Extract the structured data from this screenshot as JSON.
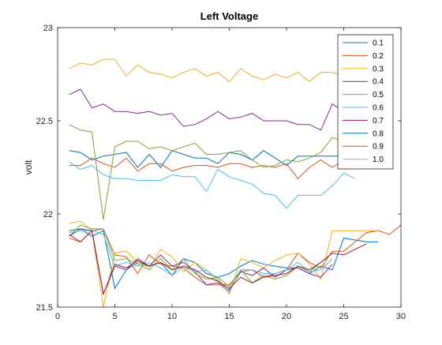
{
  "chart_data": {
    "type": "line",
    "title": "Left Voltage",
    "xlabel": "",
    "ylabel": "volt",
    "xlim": [
      0,
      30
    ],
    "ylim": [
      21.5,
      23
    ],
    "xticks": [
      0,
      5,
      10,
      15,
      20,
      25,
      30
    ],
    "yticks": [
      21.5,
      22,
      22.5,
      23
    ],
    "ytick_labels": [
      "21.5",
      "22",
      "22.5",
      "23"
    ],
    "grid": false,
    "legend_location": "top-right",
    "legend_labels": [
      "0.1",
      "0.2",
      "0.3",
      "0.4",
      "0.5",
      "0.6",
      "0.7",
      "0.8",
      "0.9",
      "1.0"
    ],
    "colors": [
      "#0072BD",
      "#D95319",
      "#EDB120",
      "#7E2F8E",
      "#77AC30",
      "#4DBEEE",
      "#A2142F"
    ],
    "series": [
      {
        "name": "0.1",
        "color": "#0072BD",
        "x": [
          1,
          2,
          3,
          4,
          5,
          6,
          7,
          8,
          9,
          10,
          11,
          12,
          13,
          14,
          15,
          16,
          17,
          18,
          19,
          20,
          21,
          22,
          23,
          24,
          25,
          26,
          27,
          28
        ],
        "y": [
          21.91,
          21.92,
          21.88,
          21.91,
          21.6,
          21.7,
          21.74,
          21.72,
          21.74,
          21.67,
          21.76,
          21.74,
          21.68,
          21.66,
          21.68,
          21.72,
          21.75,
          21.73,
          21.72,
          21.71,
          21.71,
          21.68,
          21.72,
          21.7,
          21.87,
          21.86,
          21.85,
          21.85
        ]
      },
      {
        "name": "0.2",
        "color": "#D95319",
        "x": [
          1,
          2,
          3,
          4,
          5,
          6,
          7,
          8,
          9,
          10,
          11,
          12,
          13,
          14,
          15,
          16,
          17,
          18,
          19,
          20,
          21,
          22,
          23,
          24,
          25,
          26,
          27,
          28,
          29,
          30
        ],
        "y": [
          21.87,
          21.85,
          21.91,
          21.92,
          21.78,
          21.77,
          21.68,
          21.78,
          21.73,
          21.72,
          21.71,
          21.66,
          21.62,
          21.62,
          21.62,
          21.69,
          21.7,
          21.66,
          21.68,
          21.7,
          21.79,
          21.74,
          21.71,
          21.8,
          21.8,
          21.85,
          21.9,
          21.91,
          21.89,
          21.94
        ]
      },
      {
        "name": "0.3",
        "color": "#EDB120",
        "x": [
          1,
          2,
          3,
          4,
          5,
          6,
          7,
          8,
          9,
          10,
          11,
          12,
          13,
          14,
          15,
          16,
          17,
          18,
          19,
          20,
          21,
          22,
          23,
          24,
          25,
          26,
          27,
          28
        ],
        "y": [
          21.95,
          21.96,
          21.91,
          21.5,
          21.79,
          21.8,
          21.74,
          21.71,
          21.81,
          21.77,
          21.69,
          21.74,
          21.7,
          21.64,
          21.57,
          21.76,
          21.74,
          21.71,
          21.75,
          21.78,
          21.79,
          21.73,
          21.65,
          21.91,
          21.91,
          21.91,
          21.91,
          21.91
        ]
      },
      {
        "name": "0.4",
        "color": "#7E2F8E",
        "x": [
          1,
          2,
          3,
          4,
          5,
          6,
          7,
          8,
          9,
          10,
          11,
          12,
          13,
          14,
          15,
          16,
          17,
          18,
          19,
          20,
          21,
          22,
          23,
          24
        ],
        "y": [
          21.88,
          21.92,
          21.91,
          21.57,
          21.72,
          21.7,
          21.76,
          21.72,
          21.78,
          21.72,
          21.74,
          21.69,
          21.62,
          21.63,
          21.59,
          21.69,
          21.67,
          21.71,
          21.66,
          21.7,
          21.71,
          21.68,
          21.66,
          21.73
        ]
      },
      {
        "name": "0.5",
        "color": "#77AC30",
        "x": [
          1,
          2,
          3,
          4,
          5,
          6,
          7,
          8,
          9,
          10,
          11,
          12,
          13,
          14,
          15,
          16,
          17,
          18,
          19,
          20,
          21,
          22,
          23,
          24
        ],
        "y": [
          21.88,
          21.94,
          21.92,
          21.92,
          21.75,
          21.76,
          21.73,
          21.7,
          21.76,
          21.7,
          21.76,
          21.68,
          21.65,
          21.66,
          21.61,
          21.7,
          21.63,
          21.67,
          21.65,
          21.67,
          21.72,
          21.69,
          21.74,
          21.79
        ]
      },
      {
        "name": "0.6",
        "color": "#4DBEEE",
        "x": [
          1,
          2,
          3,
          4,
          5,
          6,
          7,
          8,
          9,
          10,
          11,
          12,
          13,
          14,
          15,
          16,
          17,
          18,
          19,
          20,
          21,
          22,
          23,
          24
        ],
        "y": [
          21.9,
          21.91,
          21.91,
          21.89,
          21.72,
          21.74,
          21.72,
          21.74,
          21.71,
          21.67,
          21.72,
          21.69,
          21.7,
          21.65,
          21.58,
          21.7,
          21.7,
          21.68,
          21.68,
          21.7,
          21.74,
          21.69,
          21.7,
          21.76
        ]
      },
      {
        "name": "0.7",
        "color": "#A2142F",
        "x": [
          1,
          2,
          3,
          4,
          5,
          6,
          7,
          8,
          9,
          10,
          11,
          12,
          13,
          14,
          15,
          16,
          17,
          18,
          19,
          20,
          21,
          22,
          23,
          24,
          25,
          26,
          27
        ],
        "y": [
          21.89,
          21.85,
          21.91,
          21.57,
          21.73,
          21.71,
          21.75,
          21.72,
          21.74,
          21.7,
          21.72,
          21.7,
          21.66,
          21.64,
          21.6,
          21.66,
          21.63,
          21.66,
          21.67,
          21.68,
          21.72,
          21.7,
          21.74,
          21.79,
          21.78,
          21.81,
          21.84
        ]
      },
      {
        "name": "0.8",
        "color": "#0072BD",
        "x": [
          1,
          2,
          3,
          4,
          5,
          6,
          7,
          8,
          9,
          10,
          11,
          12,
          13,
          14,
          15,
          16,
          17,
          18,
          19,
          20,
          21,
          22,
          23,
          24,
          25,
          26,
          27
        ],
        "y": [
          22.34,
          22.33,
          22.29,
          22.31,
          22.32,
          22.33,
          22.25,
          22.32,
          22.25,
          22.34,
          22.32,
          22.3,
          22.3,
          22.27,
          22.33,
          22.32,
          22.29,
          22.34,
          22.3,
          22.26,
          22.31,
          22.31,
          22.31,
          22.31,
          22.31,
          22.28,
          22.27
        ]
      },
      {
        "name": "0.9",
        "color": "#D95319",
        "x": [
          1,
          2,
          3,
          4,
          5,
          6,
          7,
          8,
          9,
          10,
          11,
          12,
          13,
          14,
          15,
          16,
          17,
          18,
          19,
          20,
          21,
          22,
          23,
          24,
          25,
          26,
          27
        ],
        "y": [
          22.26,
          22.26,
          22.3,
          22.27,
          22.25,
          22.3,
          22.23,
          22.27,
          22.27,
          22.23,
          22.25,
          22.26,
          22.26,
          22.25,
          22.27,
          22.27,
          22.25,
          22.26,
          22.25,
          22.27,
          22.19,
          22.25,
          22.29,
          22.25,
          22.29,
          22.27,
          22.27
        ]
      },
      {
        "name": "1.0",
        "color": "#EDB120",
        "x": [
          1,
          2,
          3,
          4,
          5,
          6,
          7,
          8,
          9,
          10,
          11,
          12,
          13,
          14,
          15,
          16,
          17,
          18,
          19,
          20,
          21,
          22,
          23,
          24,
          25,
          26,
          27
        ],
        "y": [
          22.78,
          22.81,
          22.8,
          22.83,
          22.83,
          22.74,
          22.8,
          22.76,
          22.75,
          22.73,
          22.76,
          22.78,
          22.74,
          22.76,
          22.71,
          22.78,
          22.74,
          22.72,
          22.75,
          22.73,
          22.76,
          22.71,
          22.76,
          22.76,
          22.74,
          22.74,
          22.74
        ]
      },
      {
        "name": "",
        "color": "#7E2F8E",
        "x": [
          1,
          2,
          3,
          4,
          5,
          6,
          7,
          8,
          9,
          10,
          11,
          12,
          13,
          14,
          15,
          16,
          17,
          18,
          19,
          20,
          21,
          22,
          23,
          24,
          25,
          26,
          27
        ],
        "y": [
          22.64,
          22.67,
          22.57,
          22.59,
          22.55,
          22.55,
          22.54,
          22.55,
          22.53,
          22.54,
          22.47,
          22.48,
          22.51,
          22.55,
          22.51,
          22.52,
          22.54,
          22.5,
          22.5,
          22.5,
          22.48,
          22.48,
          22.45,
          22.59,
          22.55,
          22.55,
          22.55
        ]
      },
      {
        "name": "",
        "color": "#77AC30",
        "x": [
          1,
          2,
          3,
          4,
          5,
          6,
          7,
          8,
          9,
          10,
          11,
          12,
          13,
          14,
          15,
          16,
          17,
          18,
          19,
          20,
          21,
          22,
          23,
          24,
          25,
          26,
          27
        ],
        "y": [
          22.48,
          22.45,
          22.44,
          21.97,
          22.36,
          22.39,
          22.39,
          22.35,
          22.36,
          22.34,
          22.36,
          22.38,
          22.32,
          22.32,
          22.33,
          22.34,
          22.29,
          22.25,
          22.26,
          22.29,
          22.28,
          22.3,
          22.33,
          22.41,
          22.39,
          22.39,
          22.39
        ]
      },
      {
        "name": "",
        "color": "#4DBEEE",
        "x": [
          1,
          2,
          3,
          4,
          5,
          6,
          7,
          8,
          9,
          10,
          11,
          12,
          13,
          14,
          15,
          16,
          17,
          18,
          19,
          20,
          21,
          22,
          23,
          24,
          25,
          26
        ],
        "y": [
          22.28,
          22.24,
          22.26,
          22.21,
          22.19,
          22.19,
          22.18,
          22.18,
          22.18,
          22.21,
          22.2,
          22.2,
          22.12,
          22.24,
          22.2,
          22.18,
          22.16,
          22.11,
          22.1,
          22.03,
          22.1,
          22.1,
          22.1,
          22.15,
          22.22,
          22.19
        ]
      }
    ]
  }
}
